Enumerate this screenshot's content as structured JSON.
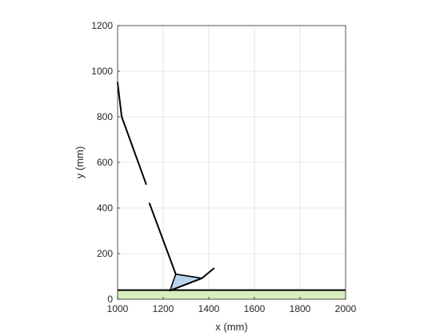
{
  "chart_data": {
    "type": "line",
    "title": "",
    "xlabel": "x (mm)",
    "ylabel": "y (mm)",
    "xlim": [
      1000,
      2000
    ],
    "ylim": [
      0,
      1200
    ],
    "xticks": [
      1000,
      1200,
      1400,
      1600,
      1800,
      2000
    ],
    "yticks": [
      0,
      200,
      400,
      600,
      800,
      1000,
      1200
    ],
    "xtick_labels": [
      "1000",
      "1200",
      "1400",
      "1600",
      "1800",
      "2000"
    ],
    "ytick_labels": [
      "0",
      "200",
      "400",
      "600",
      "800",
      "1000",
      "1200"
    ],
    "grid": true,
    "ground": {
      "top_y": 40,
      "fill_color": "#d9ecc1",
      "line_color": "#000000"
    },
    "segments": [
      {
        "points": [
          [
            1000,
            950
          ],
          [
            1018,
            800
          ],
          [
            1125,
            505
          ]
        ]
      },
      {
        "points": [
          [
            1140,
            420
          ],
          [
            1255,
            110
          ]
        ]
      }
    ],
    "foot": {
      "outline": [
        [
          1255,
          110
        ],
        [
          1370,
          92
        ],
        [
          1230,
          38
        ]
      ],
      "fill_color": "#b8d4ec",
      "toe_line": [
        [
          1370,
          92
        ],
        [
          1422,
          135
        ]
      ],
      "sole_line": [
        [
          1230,
          38
        ],
        [
          1370,
          92
        ]
      ]
    },
    "colors": {
      "line": "#000000",
      "grid": "#dfdfdf",
      "axes": "#262626"
    }
  }
}
